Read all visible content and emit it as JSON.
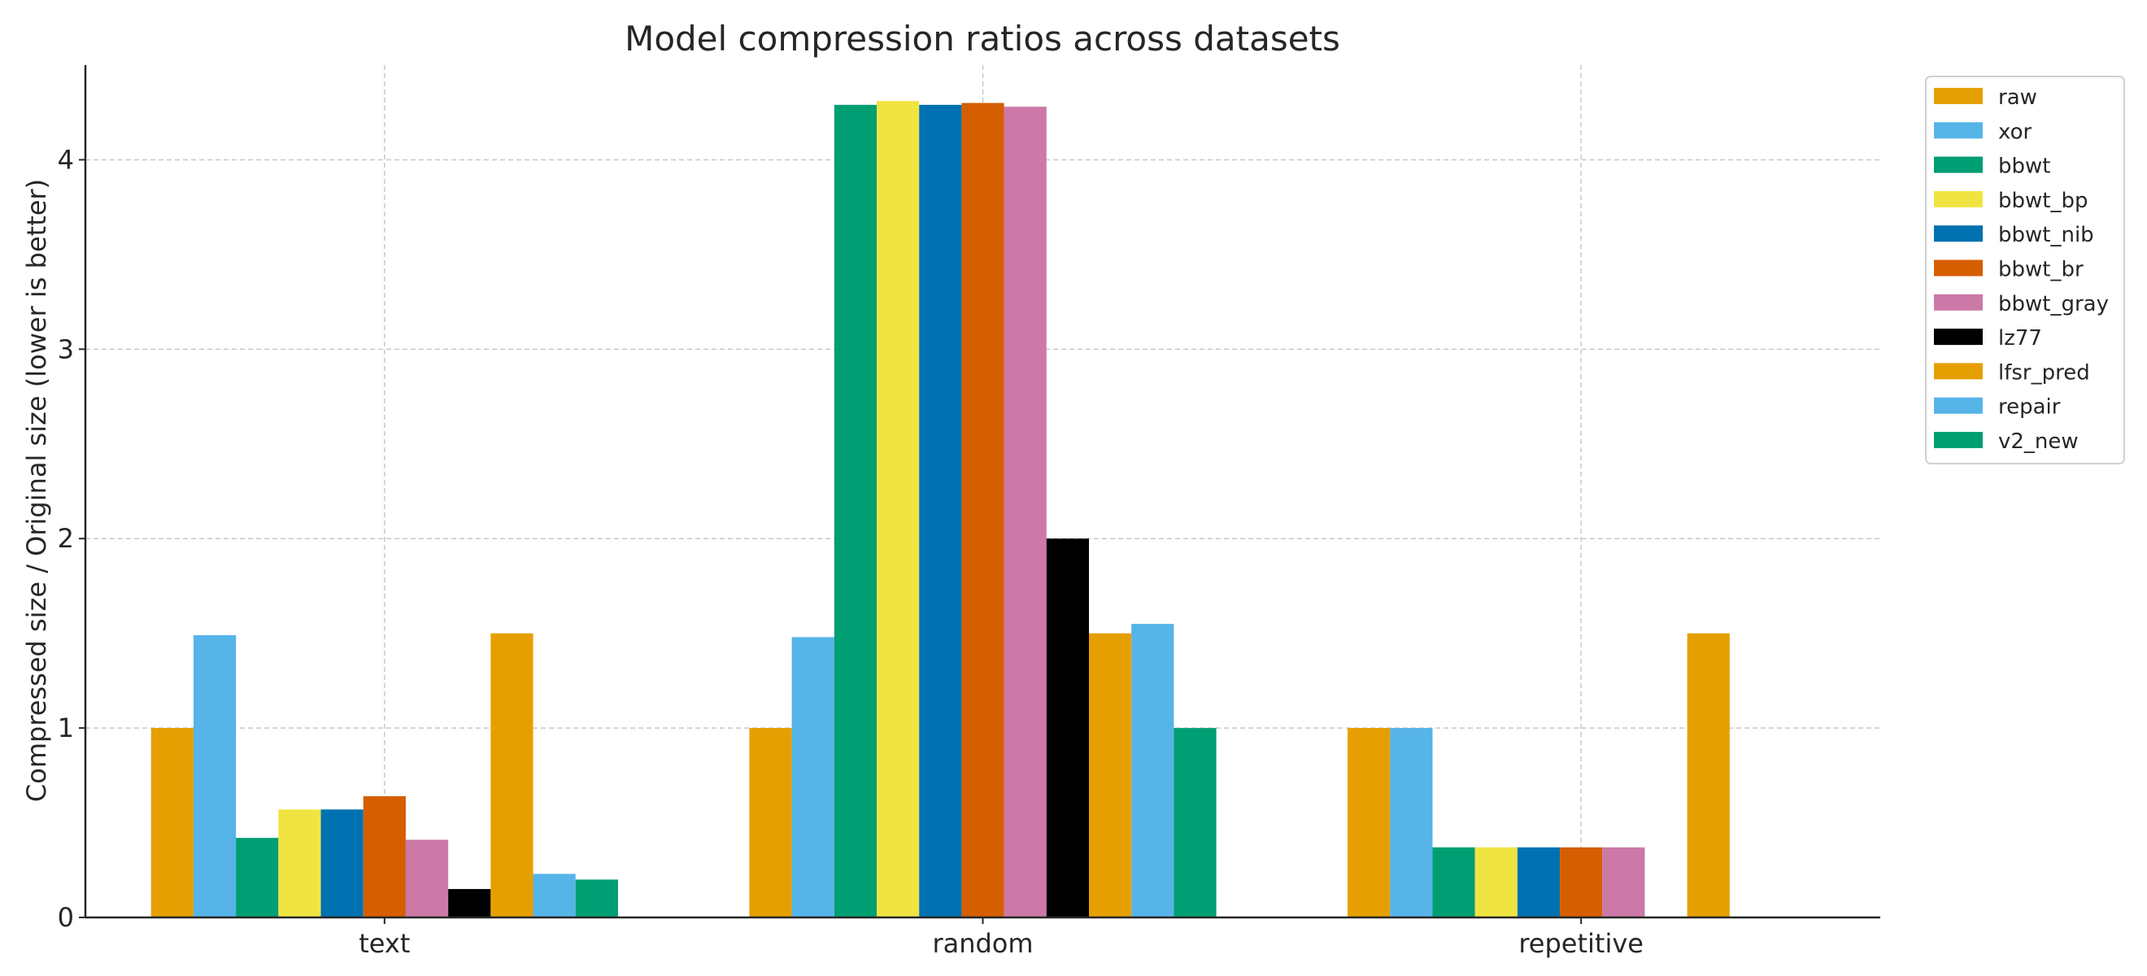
{
  "chart_data": {
    "type": "bar",
    "title": "Model compression ratios across datasets",
    "xlabel": "",
    "ylabel": "Compressed size / Original size (lower is better)",
    "categories": [
      "text",
      "random",
      "repetitive"
    ],
    "ylim": [
      0,
      4.5
    ],
    "yticks": [
      0,
      1,
      2,
      3,
      4
    ],
    "grid": true,
    "legend_position": "outside-top-right",
    "series": [
      {
        "name": "raw",
        "color": "#E69F00",
        "values": [
          1.0,
          1.0,
          1.0
        ]
      },
      {
        "name": "xor",
        "color": "#56B4E9",
        "values": [
          1.49,
          1.48,
          1.0
        ]
      },
      {
        "name": "bbwt",
        "color": "#009E73",
        "values": [
          0.42,
          4.29,
          0.37
        ]
      },
      {
        "name": "bbwt_bp",
        "color": "#F0E442",
        "values": [
          0.57,
          4.31,
          0.37
        ]
      },
      {
        "name": "bbwt_nib",
        "color": "#0072B2",
        "values": [
          0.57,
          4.29,
          0.37
        ]
      },
      {
        "name": "bbwt_br",
        "color": "#D55E00",
        "values": [
          0.64,
          4.3,
          0.37
        ]
      },
      {
        "name": "bbwt_gray",
        "color": "#CC79A7",
        "values": [
          0.41,
          4.28,
          0.37
        ]
      },
      {
        "name": "lz77",
        "color": "#000000",
        "values": [
          0.15,
          2.0,
          null
        ]
      },
      {
        "name": "lfsr_pred",
        "color": "#E69F00",
        "values": [
          1.5,
          1.5,
          1.5
        ]
      },
      {
        "name": "repair",
        "color": "#56B4E9",
        "values": [
          0.23,
          1.55,
          null
        ]
      },
      {
        "name": "v2_new",
        "color": "#009E73",
        "values": [
          0.2,
          1.0,
          null
        ]
      }
    ]
  }
}
